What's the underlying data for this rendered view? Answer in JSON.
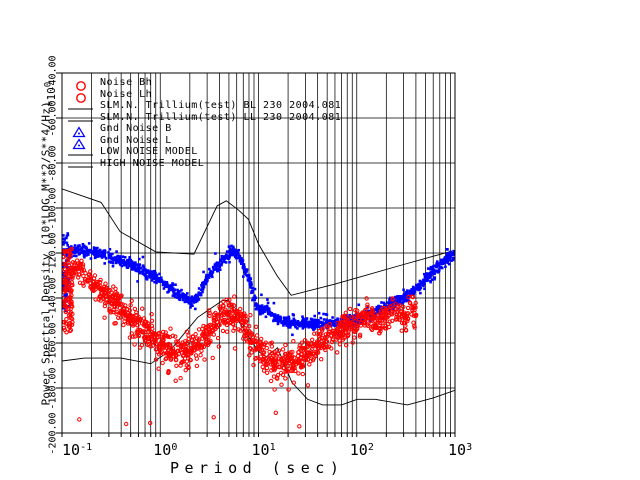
{
  "figure": {
    "background": "#ffffff",
    "grid_color": "#000000",
    "y_axis": {
      "title": "Power Spectral Density (10*LOG M**2/S**4/Hz)",
      "multiplier_base": "*10",
      "multiplier_exp": "0",
      "tick_labels": [
        "-40.00",
        "-60.00",
        "-80.00",
        "-100.00",
        "-120.00",
        "-140.00",
        "-160.00",
        "-180.00",
        "-200.00"
      ],
      "range": [
        -200,
        -40
      ],
      "tick_step": 20
    },
    "x_axis": {
      "title": "Period (sec)",
      "tick_base": "10",
      "tick_exponents": [
        "-1",
        "0",
        "1",
        "2",
        "3"
      ],
      "scale": "log",
      "range": [
        0.1,
        1000
      ]
    },
    "legend": {
      "items": [
        {
          "label": "Noise Bh",
          "symbol": "circle",
          "color": "#ff0000"
        },
        {
          "label": "Noise Lh",
          "symbol": "circle",
          "color": "#ff0000"
        },
        {
          "label": "SLM.N. Trillium(test) BL 230 2004.081",
          "symbol": "line",
          "color": "#000000"
        },
        {
          "label": "SLM.N. Trillium(test) LL 230 2004.081",
          "symbol": "line",
          "color": "#000000"
        },
        {
          "label": "Gnd Noise B",
          "symbol": "triangle",
          "color": "#0000ff"
        },
        {
          "label": "Gnd Noise L",
          "symbol": "triangle",
          "color": "#0000ff"
        },
        {
          "label": "LOW NOISE MODEL",
          "symbol": "line",
          "color": "#000000"
        },
        {
          "label": "HIGH NOISE MODEL",
          "symbol": "line",
          "color": "#000000"
        }
      ]
    }
  },
  "chart_data": {
    "type": "scatter",
    "title": "",
    "xlabel": "Period (sec)",
    "ylabel": "Power Spectral Density (10*LOG M**2/S**4/Hz)",
    "x_scale": "log",
    "xlim": [
      0.1,
      1000
    ],
    "ylim": [
      -200,
      -40
    ],
    "grid": "log-minor-full",
    "series": [
      {
        "name": "Gnd Noise (blue scatter)",
        "kind": "scatter-band",
        "color": "#0000ff",
        "marker": "filled-square",
        "n_points": 1400,
        "spread_db": 1.1,
        "fuzz_points": 260,
        "fuzz_db": 2.4,
        "startup_spike": {
          "t": [
            0.102,
            0.118
          ],
          "v": [
            -146,
            -111
          ],
          "n": 95
        },
        "centerline": [
          [
            0.118,
            -119.5
          ],
          [
            0.15,
            -118.5
          ],
          [
            0.19,
            -119.5
          ],
          [
            0.25,
            -120.5
          ],
          [
            0.32,
            -122
          ],
          [
            0.42,
            -124
          ],
          [
            0.55,
            -126
          ],
          [
            0.72,
            -128.5
          ],
          [
            0.95,
            -131.5
          ],
          [
            1.25,
            -135
          ],
          [
            1.6,
            -138.5
          ],
          [
            2.0,
            -141.5
          ],
          [
            2.3,
            -141.5
          ],
          [
            2.8,
            -134
          ],
          [
            3.2,
            -129.5
          ],
          [
            3.9,
            -125
          ],
          [
            4.7,
            -121
          ],
          [
            5.6,
            -118.8
          ],
          [
            6.3,
            -121
          ],
          [
            7.2,
            -127
          ],
          [
            8.2,
            -133
          ],
          [
            9.3,
            -142
          ],
          [
            10.3,
            -145.5
          ],
          [
            11.5,
            -146
          ],
          [
            12.4,
            -144.8
          ],
          [
            13.5,
            -147
          ],
          [
            15,
            -148.8
          ],
          [
            18,
            -150.5
          ],
          [
            22,
            -151.3
          ],
          [
            28,
            -151.6
          ],
          [
            36,
            -151.7
          ],
          [
            48,
            -151.5
          ],
          [
            65,
            -151
          ],
          [
            85,
            -150
          ],
          [
            110,
            -148.8
          ],
          [
            140,
            -147.5
          ],
          [
            180,
            -145
          ],
          [
            230,
            -142.5
          ],
          [
            290,
            -140.5
          ],
          [
            345,
            -138.7
          ],
          [
            430,
            -134.5
          ],
          [
            520,
            -131
          ],
          [
            630,
            -127.5
          ],
          [
            760,
            -124
          ],
          [
            870,
            -122
          ],
          [
            975,
            -120.8
          ]
        ]
      },
      {
        "name": "Noise Bh/Lh (red scatter)",
        "kind": "scatter-band",
        "color": "#ff0000",
        "marker": "open-circle",
        "n_points": 1150,
        "spread_db": 3.0,
        "fuzz_points": 0,
        "fuzz_db": 0,
        "startup_spike": {
          "t": [
            0.102,
            0.128
          ],
          "v": [
            -156,
            -118
          ],
          "n": 115
        },
        "outliers_low": {
          "t_range": [
            0.25,
            35
          ],
          "n": 120,
          "max_below_db": 16
        },
        "outliers_low2": {
          "t_range": [
            60,
            420
          ],
          "n": 22,
          "max_below_db": 8
        },
        "extreme_points": [
          [
            0.15,
            -194
          ],
          [
            0.45,
            -196
          ],
          [
            0.79,
            -195.5
          ],
          [
            3.5,
            -193
          ],
          [
            15,
            -191
          ],
          [
            26,
            -197
          ]
        ],
        "centerline": [
          [
            0.125,
            -126
          ],
          [
            0.16,
            -129.5
          ],
          [
            0.2,
            -133
          ],
          [
            0.26,
            -137
          ],
          [
            0.33,
            -141
          ],
          [
            0.42,
            -145
          ],
          [
            0.53,
            -149
          ],
          [
            0.68,
            -153.5
          ],
          [
            0.85,
            -157
          ],
          [
            1.05,
            -160.5
          ],
          [
            1.3,
            -162.5
          ],
          [
            1.65,
            -163.5
          ],
          [
            2.0,
            -163
          ],
          [
            2.6,
            -159.5
          ],
          [
            3.2,
            -154
          ],
          [
            4.0,
            -149
          ],
          [
            5.0,
            -146.5
          ],
          [
            6.3,
            -148
          ],
          [
            7.5,
            -153
          ],
          [
            9,
            -159
          ],
          [
            11,
            -164
          ],
          [
            14,
            -167.5
          ],
          [
            18,
            -169
          ],
          [
            23,
            -168
          ],
          [
            30,
            -164.5
          ],
          [
            40,
            -160.5
          ],
          [
            55,
            -157
          ],
          [
            75,
            -153
          ],
          [
            100,
            -150.5
          ],
          [
            130,
            -149
          ],
          [
            165,
            -151
          ],
          [
            200,
            -148
          ],
          [
            245,
            -146.5
          ],
          [
            300,
            -149
          ],
          [
            350,
            -146
          ],
          [
            410,
            -145.5
          ]
        ]
      },
      {
        "name": "LOW NOISE MODEL",
        "kind": "line",
        "color": "#000000",
        "points": [
          [
            0.1,
            -168
          ],
          [
            0.17,
            -166.7
          ],
          [
            0.4,
            -166.7
          ],
          [
            0.8,
            -169.2
          ],
          [
            1.24,
            -163.7
          ],
          [
            2.4,
            -148.6
          ],
          [
            4.3,
            -141.1
          ],
          [
            5.0,
            -141.1
          ],
          [
            6.0,
            -149
          ],
          [
            10,
            -163.8
          ],
          [
            12,
            -166.2
          ],
          [
            15.6,
            -162.1
          ],
          [
            21.9,
            -177.5
          ],
          [
            31.6,
            -185
          ],
          [
            45,
            -187.5
          ],
          [
            70,
            -187.5
          ],
          [
            101,
            -185
          ],
          [
            154,
            -185
          ],
          [
            328,
            -187.5
          ],
          [
            600,
            -184.4
          ],
          [
            1000,
            -181
          ]
        ]
      },
      {
        "name": "HIGH NOISE MODEL",
        "kind": "line",
        "color": "#000000",
        "points": [
          [
            0.1,
            -91.5
          ],
          [
            0.25,
            -97.5
          ],
          [
            0.39,
            -110.5
          ],
          [
            0.9,
            -119.5
          ],
          [
            2.2,
            -120.5
          ],
          [
            3.8,
            -99
          ],
          [
            4.7,
            -96.8
          ],
          [
            6.3,
            -101
          ],
          [
            7.9,
            -105
          ],
          [
            10,
            -116
          ],
          [
            15.4,
            -130
          ],
          [
            21.5,
            -138.8
          ],
          [
            60,
            -133.8
          ],
          [
            300,
            -125.1
          ],
          [
            650,
            -121
          ],
          [
            1000,
            -118.8
          ]
        ]
      }
    ]
  }
}
